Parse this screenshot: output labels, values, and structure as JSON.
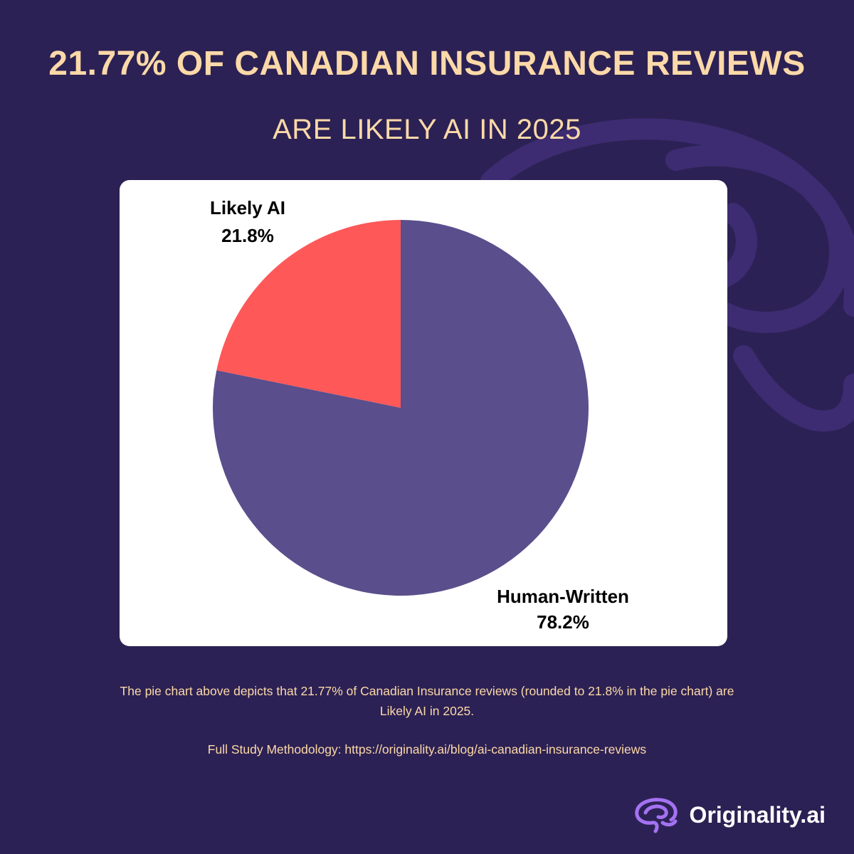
{
  "header": {
    "title": "21.77% OF CANADIAN INSURANCE REVIEWS",
    "subtitle": "ARE LIKELY AI IN 2025"
  },
  "chart_data": {
    "type": "pie",
    "title": "",
    "slices": [
      {
        "label": "Human-Written",
        "value": 78.2,
        "display": "78.2%",
        "color": "#5a4e8c"
      },
      {
        "label": "Likely AI",
        "value": 21.8,
        "display": "21.8%",
        "color": "#fe5859"
      }
    ]
  },
  "footer": {
    "caption": "The pie chart above depicts that 21.77% of Canadian Insurance reviews (rounded to 21.8% in the pie chart) are Likely AI in 2025.",
    "methodology": "Full Study Methodology: https://originality.ai/blog/ai-canadian-insurance-reviews"
  },
  "brand": {
    "name": "Originality.ai",
    "icon": "brain-logo-icon"
  },
  "colors": {
    "background": "#2c2154",
    "accent_text": "#fcd9a8",
    "swirl": "#3d2c72"
  }
}
